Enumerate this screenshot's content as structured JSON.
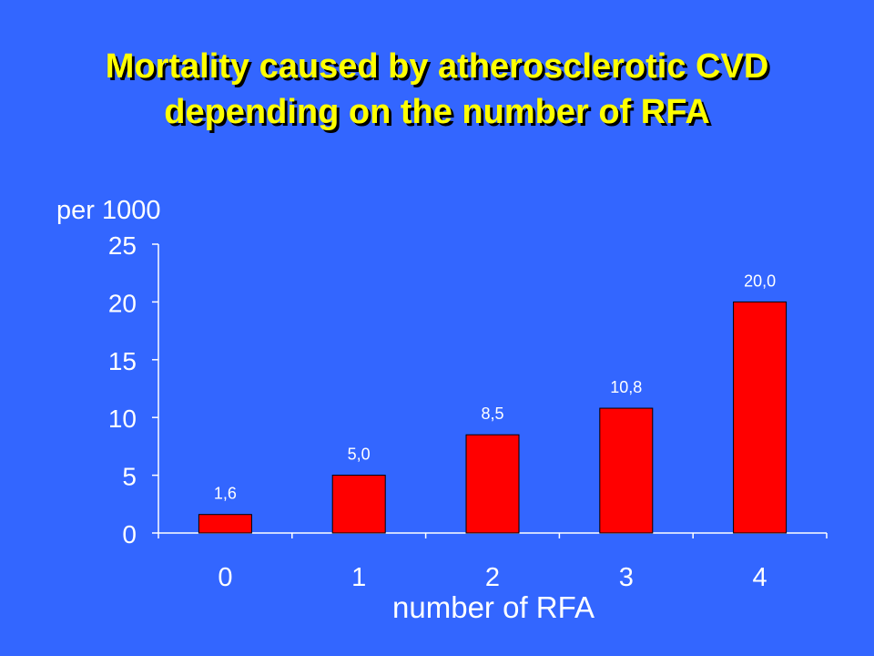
{
  "title_lines": [
    "Mortality caused by atherosclerotic CVD",
    "depending on the number of RFA"
  ],
  "colors": {
    "background": "#3366FF",
    "title": "#FFFF00",
    "title_shadow": "#000000",
    "bar": "#FF0000",
    "bar_stroke": "#000000",
    "axis": "#FFFFFF",
    "text": "#FFFFFF",
    "data_label": "#FFFFFF"
  },
  "chart_data": {
    "type": "bar",
    "categories": [
      "0",
      "1",
      "2",
      "3",
      "4"
    ],
    "values": [
      1.6,
      5.0,
      8.5,
      10.8,
      20.0
    ],
    "data_labels": [
      "1,6",
      "5,0",
      "8,5",
      "10,8",
      "20,0"
    ],
    "ylabel": "per 1000",
    "xlabel": "number of RFA",
    "ylim": [
      0,
      25
    ],
    "yticks": [
      0,
      5,
      10,
      15,
      20,
      25
    ],
    "grid": false,
    "legend": "none"
  }
}
